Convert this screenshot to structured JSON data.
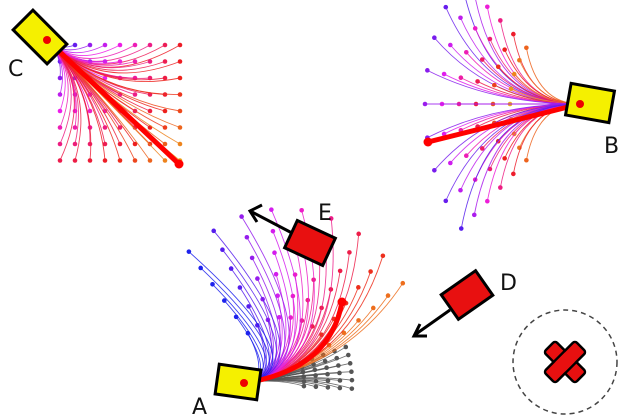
{
  "labels": {
    "a": "A",
    "b": "B",
    "c": "C",
    "d": "D",
    "e": "E"
  }
}
